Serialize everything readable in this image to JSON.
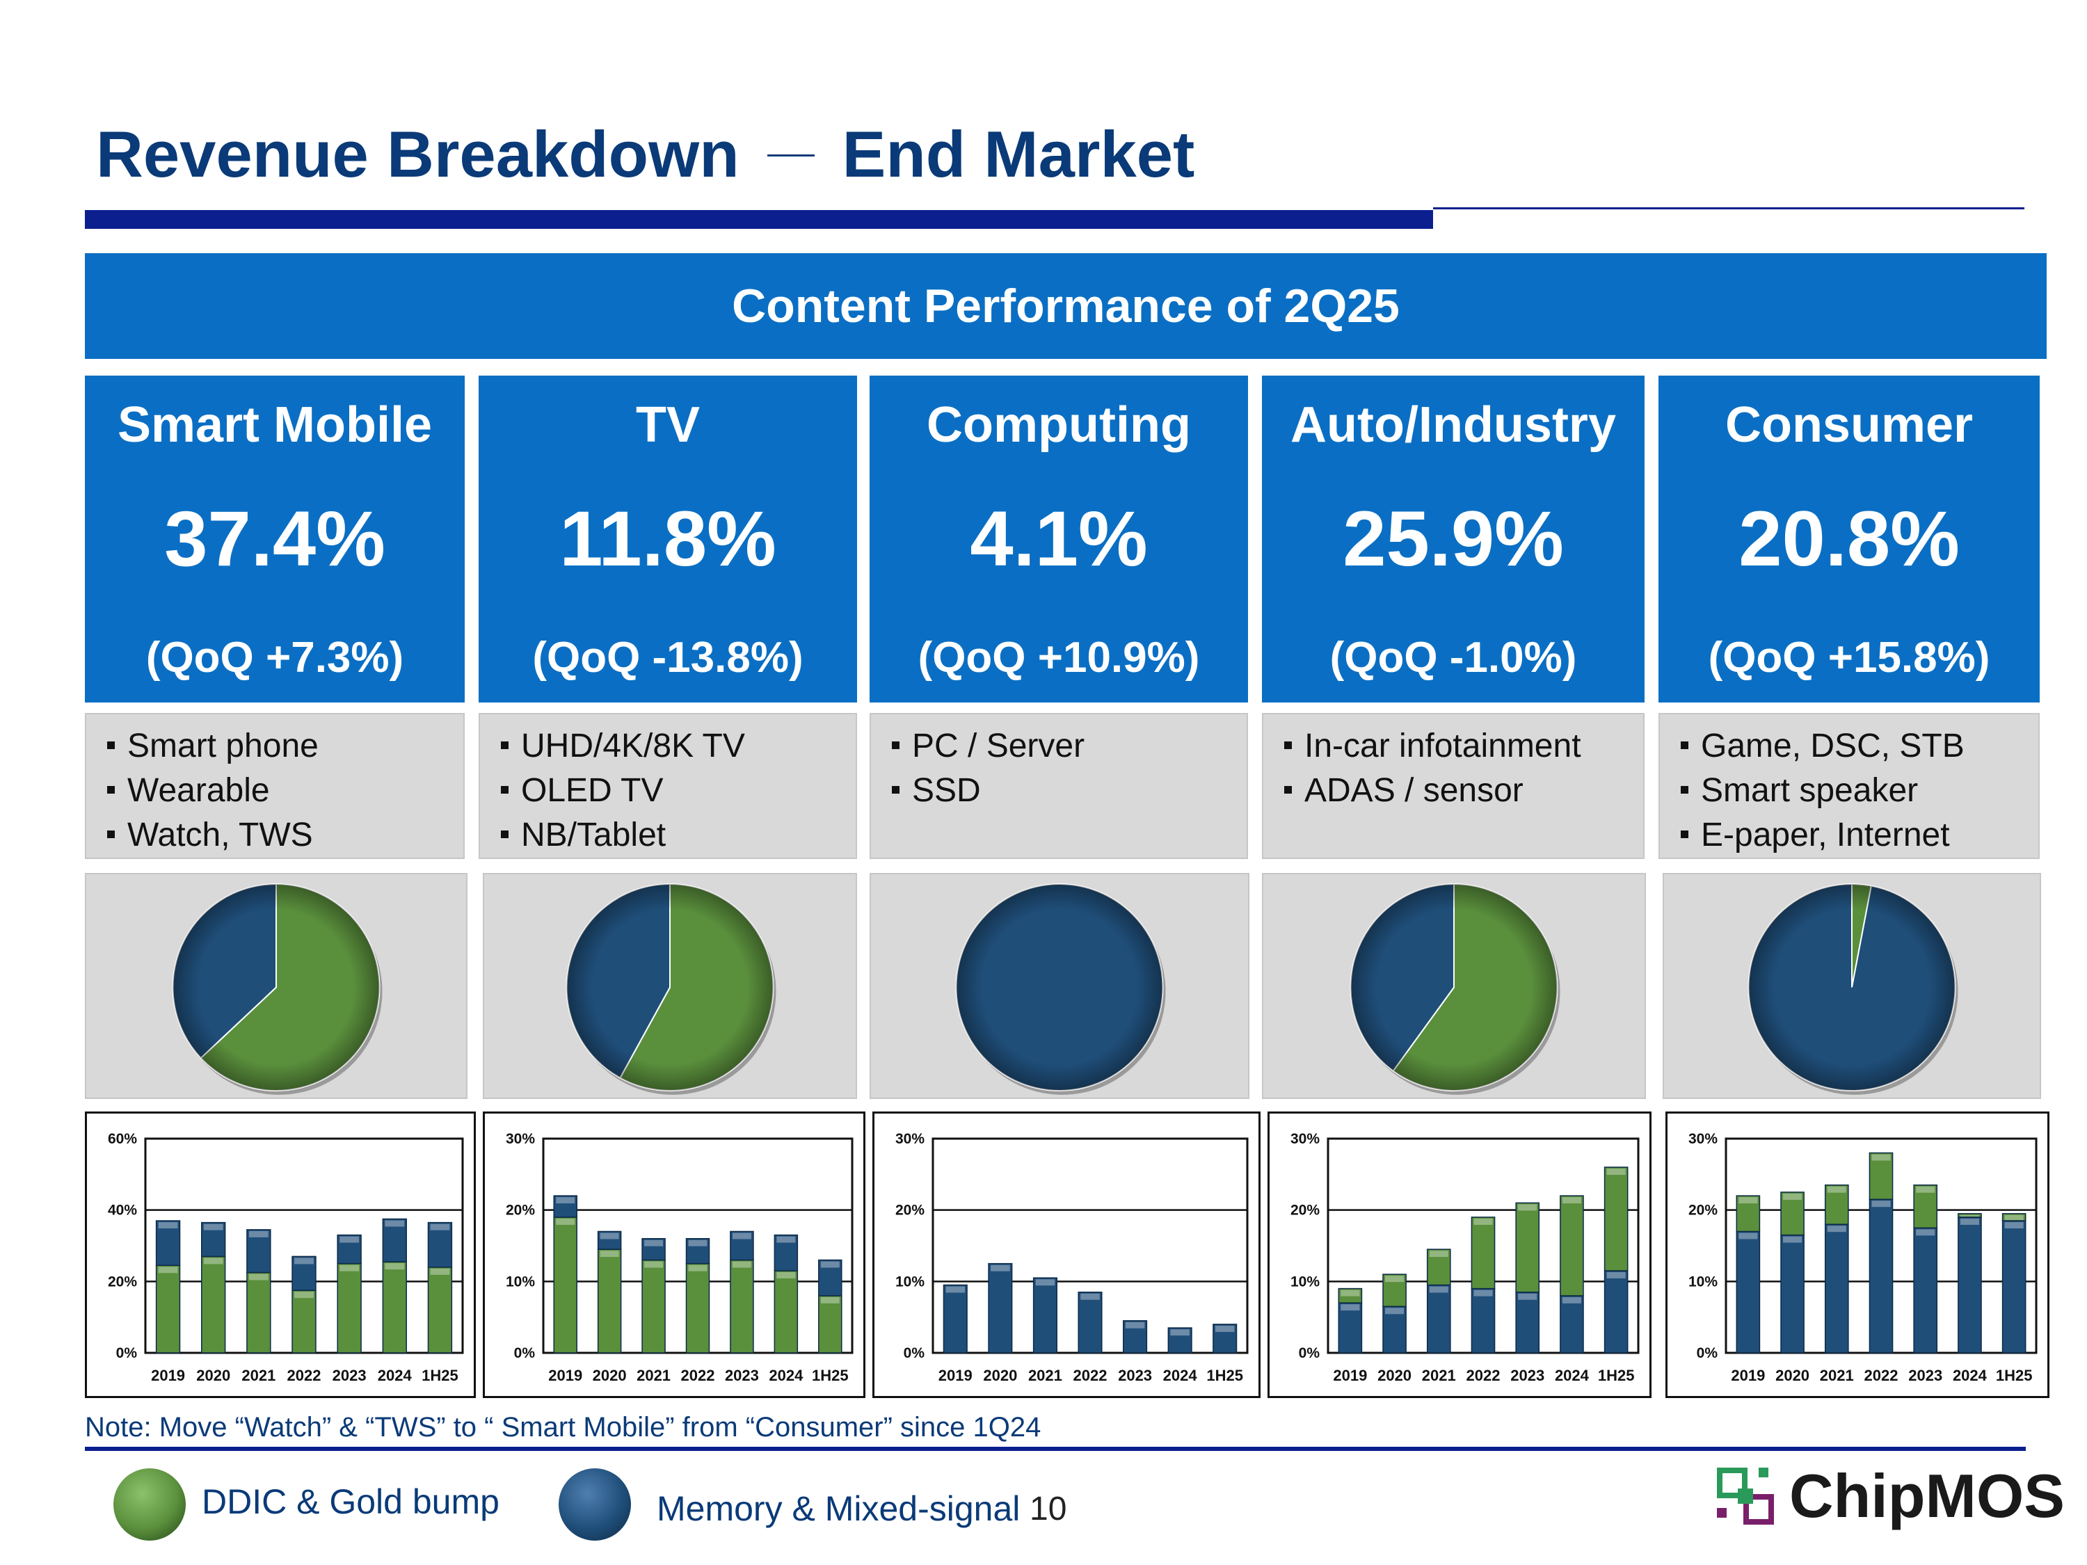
{
  "title_left": "Revenue Breakdown",
  "title_right": "End Market",
  "banner": "Content Performance of 2Q25",
  "cards": [
    {
      "name": "Smart Mobile",
      "pct": "37.4%",
      "qoq": "(QoQ +7.3%)",
      "bullets": [
        "Smart phone",
        "Wearable",
        "Watch, TWS"
      ]
    },
    {
      "name": "TV",
      "pct": "11.8%",
      "qoq": "(QoQ -13.8%)",
      "bullets": [
        "UHD/4K/8K TV",
        "OLED TV",
        "NB/Tablet"
      ]
    },
    {
      "name": "Computing",
      "pct": "4.1%",
      "qoq": "(QoQ  +10.9%)",
      "bullets": [
        "PC / Server",
        "SSD"
      ]
    },
    {
      "name": "Auto/Industry",
      "pct": "25.9%",
      "qoq": "(QoQ -1.0%)",
      "bullets": [
        "In-car infotainment",
        "ADAS / sensor"
      ]
    },
    {
      "name": "Consumer",
      "pct": "20.8%",
      "qoq": "(QoQ  +15.8%)",
      "bullets": [
        "Game, DSC, STB",
        "Smart speaker",
        "E-paper, Internet"
      ]
    }
  ],
  "colors": {
    "ddic": "#5a8f3c",
    "memory": "#1f4e79",
    "accent": "#0a6fc4",
    "title": "#0a3a78"
  },
  "chart_data": [
    {
      "type": "pie",
      "name": "Smart Mobile",
      "labels": [
        "DDIC & Gold bump",
        "Memory & Mixed-signal"
      ],
      "values": [
        63,
        37
      ]
    },
    {
      "type": "pie",
      "name": "TV",
      "labels": [
        "DDIC & Gold bump",
        "Memory & Mixed-signal"
      ],
      "values": [
        58,
        42
      ]
    },
    {
      "type": "pie",
      "name": "Computing",
      "labels": [
        "DDIC & Gold bump",
        "Memory & Mixed-signal"
      ],
      "values": [
        0,
        100
      ]
    },
    {
      "type": "pie",
      "name": "Auto/Industry",
      "labels": [
        "DDIC & Gold bump",
        "Memory & Mixed-signal"
      ],
      "values": [
        60,
        40
      ]
    },
    {
      "type": "pie",
      "name": "Consumer",
      "labels": [
        "DDIC & Gold bump",
        "Memory & Mixed-signal"
      ],
      "values": [
        3,
        97
      ]
    },
    {
      "type": "bar",
      "stacked": true,
      "categories": [
        "2019",
        "2020",
        "2021",
        "2022",
        "2023",
        "2024",
        "1H25"
      ],
      "ylim": [
        0,
        60
      ],
      "yticks": [
        "0%",
        "20%",
        "40%",
        "60%"
      ],
      "series": [
        {
          "name": "DDIC & Gold bump",
          "values": [
            24.5,
            27,
            22.5,
            17.5,
            25,
            25.5,
            24
          ]
        },
        {
          "name": "Memory & Mixed-signal",
          "values": [
            12.5,
            9.5,
            12,
            9.5,
            8,
            12,
            12.5
          ]
        }
      ]
    },
    {
      "type": "bar",
      "stacked": true,
      "categories": [
        "2019",
        "2020",
        "2021",
        "2022",
        "2023",
        "2024",
        "1H25"
      ],
      "ylim": [
        0,
        30
      ],
      "yticks": [
        "0%",
        "10%",
        "20%",
        "30%"
      ],
      "series": [
        {
          "name": "DDIC & Gold bump",
          "values": [
            19,
            14.5,
            13,
            12.5,
            13,
            11.5,
            8
          ]
        },
        {
          "name": "Memory & Mixed-signal",
          "values": [
            3,
            2.5,
            3,
            3.5,
            4,
            5,
            5
          ]
        }
      ]
    },
    {
      "type": "bar",
      "stacked": true,
      "categories": [
        "2019",
        "2020",
        "2021",
        "2022",
        "2023",
        "2024",
        "1H25"
      ],
      "ylim": [
        0,
        30
      ],
      "yticks": [
        "0%",
        "10%",
        "20%",
        "30%"
      ],
      "series": [
        {
          "name": "DDIC & Gold bump",
          "values": [
            0,
            0,
            0,
            0,
            0,
            0,
            0
          ]
        },
        {
          "name": "Memory & Mixed-signal",
          "values": [
            9.5,
            12.5,
            10.5,
            8.5,
            4.5,
            3.5,
            4
          ]
        }
      ]
    },
    {
      "type": "bar",
      "stacked": true,
      "categories": [
        "2019",
        "2020",
        "2021",
        "2022",
        "2023",
        "2024",
        "1H25"
      ],
      "ylim": [
        0,
        30
      ],
      "yticks": [
        "0%",
        "10%",
        "20%",
        "30%"
      ],
      "series": [
        {
          "name": "Memory & Mixed-signal",
          "values": [
            7,
            6.5,
            9.5,
            9,
            8.5,
            8,
            11.5
          ]
        },
        {
          "name": "DDIC & Gold bump",
          "values": [
            2,
            4.5,
            5,
            10,
            12.5,
            14,
            14.5
          ]
        }
      ]
    },
    {
      "type": "bar",
      "stacked": true,
      "categories": [
        "2019",
        "2020",
        "2021",
        "2022",
        "2023",
        "2024",
        "1H25"
      ],
      "ylim": [
        0,
        30
      ],
      "yticks": [
        "0%",
        "10%",
        "20%",
        "30%"
      ],
      "series": [
        {
          "name": "Memory & Mixed-signal",
          "values": [
            17,
            16.5,
            18,
            21.5,
            17.5,
            19,
            18.5
          ]
        },
        {
          "name": "DDIC & Gold bump",
          "values": [
            5,
            6,
            5.5,
            6.5,
            6,
            0.5,
            1
          ]
        }
      ]
    }
  ],
  "note": "Note: Move “Watch” & “TWS” to “ Smart Mobile” from “Consumer” since 1Q24",
  "legend": {
    "ddic": "DDIC & Gold bump",
    "memory": "Memory & Mixed-signal"
  },
  "page_number": "10",
  "logo": "ChipMOS"
}
